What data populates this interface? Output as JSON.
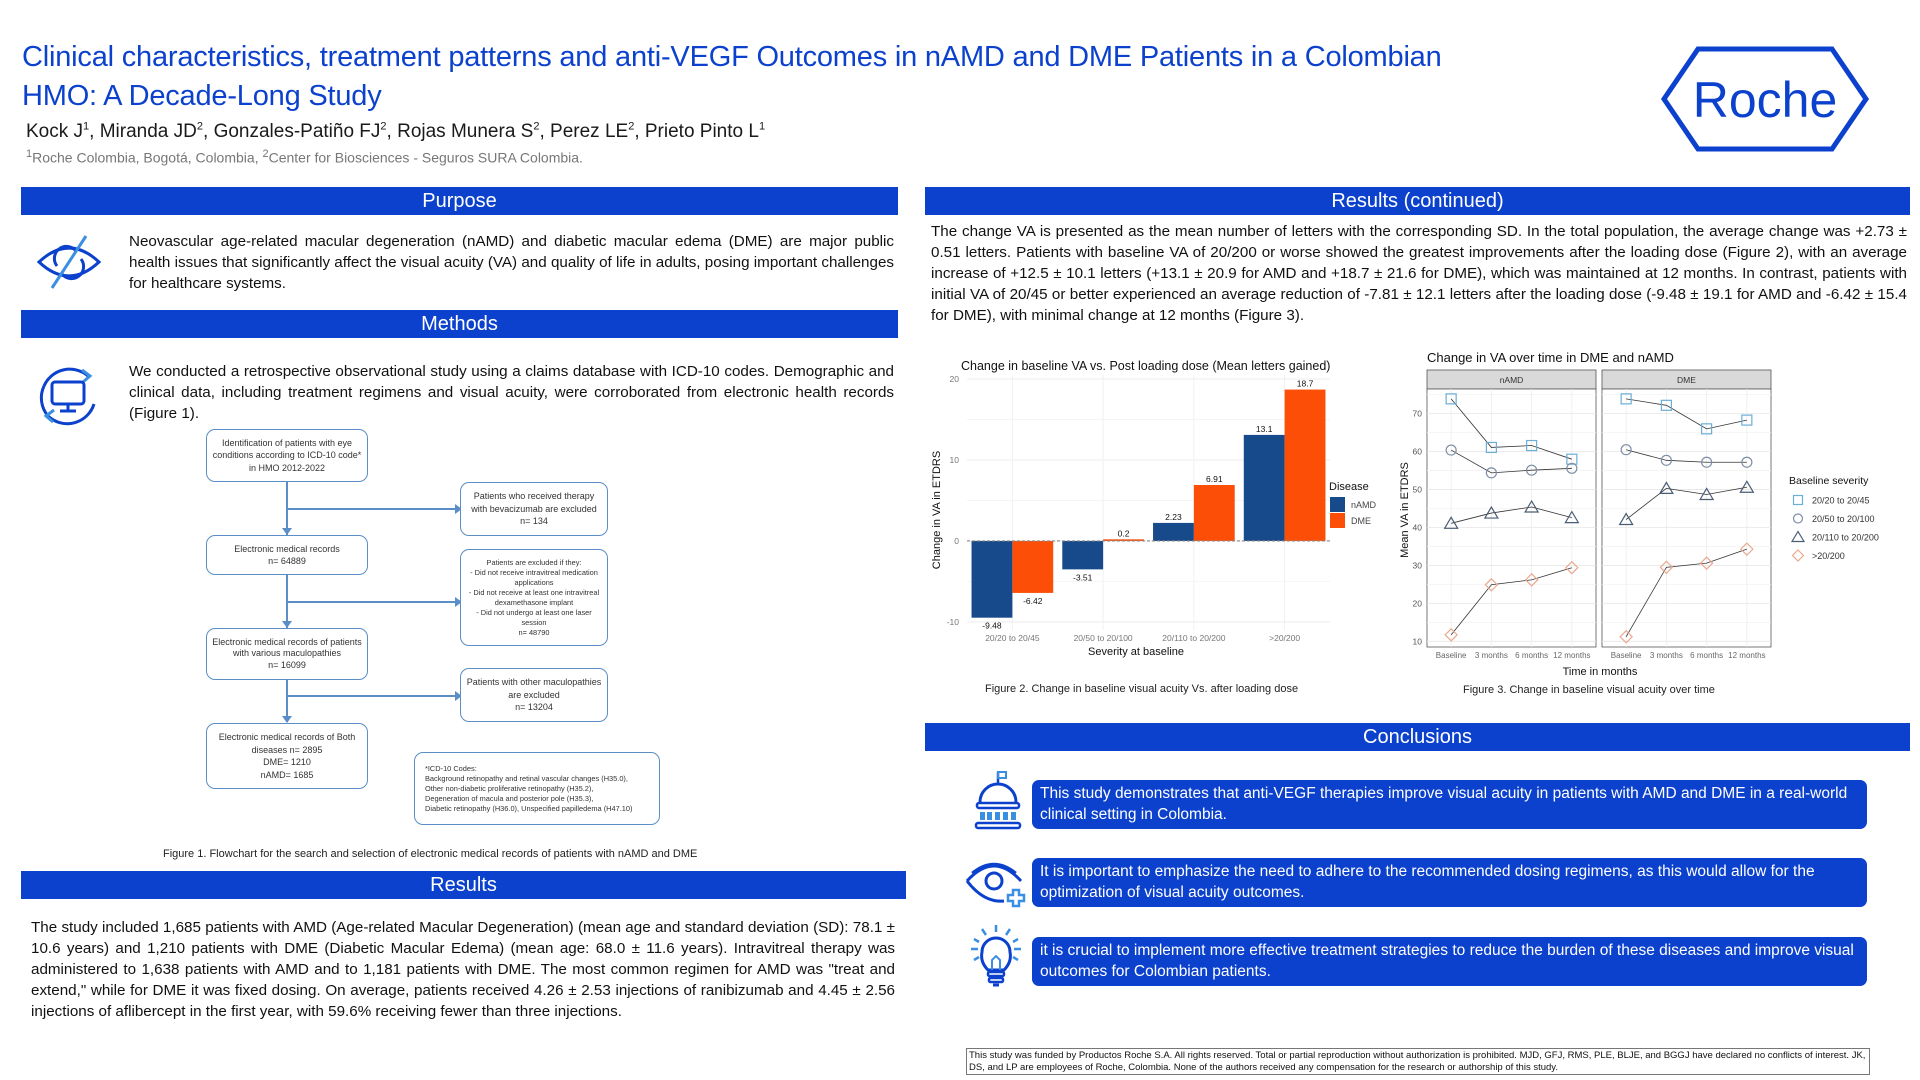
{
  "header": {
    "title_line1": "Clinical characteristics, treatment patterns and anti-VEGF Outcomes in nAMD and DME Patients in a Colombian",
    "title_line2": "HMO: A Decade-Long Study",
    "authors": [
      {
        "name": "Kock J",
        "sup": "1"
      },
      {
        "name": "Miranda JD",
        "sup": "2"
      },
      {
        "name": "Gonzales-Patiño FJ",
        "sup": "2"
      },
      {
        "name": "Rojas Munera S",
        "sup": "2"
      },
      {
        "name": "Perez LE",
        "sup": "2"
      },
      {
        "name": "Prieto Pinto L",
        "sup": "1"
      }
    ],
    "affiliations": [
      {
        "sup": "1",
        "text": "Roche Colombia, Bogotá, Colombia, "
      },
      {
        "sup": "2",
        "text": "Center for Biosciences - Seguros SURA Colombia."
      }
    ],
    "logo_text": "Roche",
    "brand_color": "#0b41cd"
  },
  "purpose": {
    "heading": "Purpose",
    "icon": "eye-slash-icon",
    "text": "Neovascular age-related macular degeneration (nAMD) and diabetic macular edema (DME) are major public health issues that significantly affect the visual acuity (VA) and quality of life in adults, posing important challenges for healthcare systems."
  },
  "methods": {
    "heading": "Methods",
    "icon": "monitor-sync-icon",
    "text": "We conducted a retrospective observational study using a claims database with ICD-10 codes. Demographic and clinical data, including treatment regimens and visual acuity, were corroborated from electronic health records (Figure 1).",
    "flowchart": {
      "main": [
        "Identification of patients with eye conditions according to ICD-10 code* in HMO 2012-2022",
        "Electronic medical records\nn= 64889",
        "Electronic medical records of patients with various maculopathies\nn= 16099",
        "Electronic medical records of Both diseases n= 2895\nDME= 1210\nnAMD= 1685"
      ],
      "excluded": [
        "Patients who received therapy with bevacizumab are excluded\nn= 134",
        "Patients are excluded if they:\n- Did not receive intravitreal medication applications\n- Did not receive at least one intravitreal dexamethasone implant\n- Did not undergo at least one laser session\nn= 48790",
        "Patients with other maculopathies are excluded\nn= 13204"
      ],
      "icd_note": "*ICD-10 Codes:\nBackground retinopathy and retinal vascular changes (H35.0),\nOther non-diabetic proliferative retinopathy (H35.2),\nDegeneration of macula and posterior pole (H35.3),\nDiabetic retinopathy (H36.0), Unspecified papilledema (H47.10)",
      "caption": "Figure 1. Flowchart for the search and selection of electronic medical records of patients with nAMD and DME"
    }
  },
  "results": {
    "heading": "Results",
    "text": "The study included 1,685 patients with AMD (Age-related Macular Degeneration) (mean age and standard deviation (SD): 78.1 ± 10.6 years) and 1,210 patients with DME (Diabetic Macular Edema) (mean age: 68.0 ± 11.6 years). Intravitreal therapy was administered to 1,638 patients with AMD and to 1,181 patients with DME. The most common regimen for AMD was \"treat and extend,\" while for DME it was fixed dosing. On average, patients received 4.26 ± 2.53 injections of ranibizumab and 4.45 ± 2.56 injections of aflibercept in the first year, with 59.6% receiving fewer than three injections."
  },
  "results_continued": {
    "heading": "Results (continued)",
    "text": "The change VA is presented as the mean number of letters with the corresponding SD. In the total population, the average change was +2.73 ± 0.51 letters. Patients with baseline VA of 20/200 or worse showed the greatest improvements after the loading dose (Figure 2), with an average increase of +12.5 ± 10.1 letters (+13.1 ± 20.9 for AMD and +18.7 ± 21.6 for DME), which was maintained at 12 months.  In contrast, patients with initial VA of 20/45 or better experienced an average reduction of -7.81 ± 12.1 letters after the loading dose (-9.48 ± 19.1 for AMD and -6.42 ± 15.4 for DME), with minimal change at 12 months (Figure 3).",
    "figure2_caption": "Figure 2. Change in baseline visual acuity Vs. after loading dose",
    "figure3_caption": "Figure 3. Change in baseline visual acuity over time"
  },
  "chart_data": [
    {
      "type": "bar",
      "title": "Change in baseline VA vs. Post loading dose (Mean letters gained)",
      "xlabel": "Severity at baseline",
      "ylabel": "Change in VA in ETDRS",
      "categories": [
        "20/20 to 20/45",
        "20/50 to 20/100",
        "20/110 to 20/200",
        ">20/200"
      ],
      "series": [
        {
          "name": "nAMD",
          "color": "#174a8b",
          "values": [
            -9.48,
            -3.51,
            2.23,
            13.1
          ],
          "labels": [
            "-9.48",
            "-3.51",
            "2.23",
            "13.1"
          ]
        },
        {
          "name": "DME",
          "color": "#fc4e07",
          "values": [
            -6.42,
            0.2,
            6.91,
            18.7
          ],
          "labels": [
            "-6.42",
            "0.2",
            "6.91",
            "18.7"
          ]
        }
      ],
      "ylim": [
        -11,
        20.5
      ],
      "yticks": [
        -10,
        0,
        10,
        20
      ],
      "legend_title": "Disease",
      "legend_position": "right",
      "grid": true
    },
    {
      "type": "line",
      "title": "Change in VA over time in DME and nAMD",
      "xlabel": "Time in months",
      "ylabel": "Mean VA in ETDRS",
      "x": [
        "Baseline",
        "3 months",
        "6 months",
        "12 months"
      ],
      "facets": [
        "nAMD",
        "DME"
      ],
      "ylim": [
        8.5,
        76.5
      ],
      "yticks": [
        10,
        20,
        30,
        40,
        50,
        60,
        70
      ],
      "legend_title": "Baseline severity",
      "legend_position": "right",
      "grid": true,
      "series": [
        {
          "name": "20/20 to 20/45",
          "marker": "square",
          "color": "#6baed6",
          "nAMD": [
            73.9,
            61.1,
            61.6,
            58.0
          ],
          "DME": [
            73.9,
            72.2,
            66.0,
            68.3
          ]
        },
        {
          "name": "20/50 to 20/100",
          "marker": "circle",
          "color": "#7f8fa6",
          "nAMD": [
            60.4,
            54.4,
            55.1,
            55.6
          ],
          "DME": [
            60.5,
            57.7,
            57.2,
            57.2
          ]
        },
        {
          "name": "20/110 to 20/200",
          "marker": "triangle",
          "color": "#4a5d75",
          "nAMD": [
            41.1,
            43.8,
            45.4,
            42.6
          ],
          "DME": [
            42.1,
            50.3,
            48.7,
            50.6
          ]
        },
        {
          "name": ">20/200",
          "marker": "diamond",
          "color": "#e8a98f",
          "nAMD": [
            11.7,
            24.9,
            26.2,
            29.4
          ],
          "DME": [
            11.2,
            29.5,
            30.6,
            34.3
          ]
        }
      ]
    }
  ],
  "conclusions": {
    "heading": "Conclusions",
    "items": [
      {
        "icon": "capitol-building-icon",
        "text": "This study demonstrates that anti-VEGF therapies improve visual acuity in patients with AMD and DME  in a real-world clinical setting in Colombia."
      },
      {
        "icon": "eye-plus-icon",
        "text": "It is important to emphasize the need to adhere to the recommended dosing regimens, as this would allow for the optimization of visual acuity outcomes."
      },
      {
        "icon": "lightbulb-icon",
        "text": "it is crucial to implement more effective treatment strategies to reduce the burden of these diseases and improve visual outcomes for Colombian patients."
      }
    ]
  },
  "footer": {
    "text": "This study was funded by Productos Roche S.A. All rights reserved. Total or partial reproduction without authorization is prohibited. MJD, GFJ, RMS, PLE, BLJE, and BGGJ have declared no conflicts of interest. JK, DS, and LP are employees of Roche, Colombia. None of the authors received any compensation for the research or authorship of this study."
  }
}
